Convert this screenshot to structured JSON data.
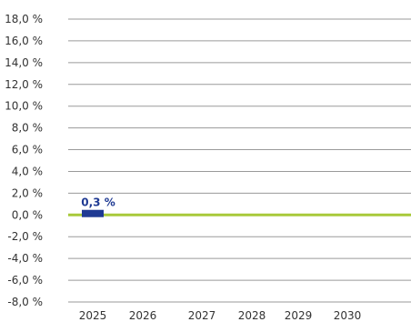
{
  "chart_data": {
    "type": "bar",
    "categories": [
      "2025",
      "2026",
      "2027",
      "2028",
      "2029",
      "2030"
    ],
    "series": [
      {
        "values": [
          0.3,
          null,
          null,
          null,
          null,
          null
        ]
      }
    ],
    "data_labels": [
      "0,3 %",
      "",
      "",
      "",
      "",
      ""
    ],
    "y_ticks": [
      18.0,
      16.0,
      14.0,
      12.0,
      10.0,
      8.0,
      6.0,
      4.0,
      2.0,
      0.0,
      -2.0,
      -4.0,
      -6.0,
      -8.0
    ],
    "y_tick_labels": [
      "18,0 %",
      "16,0 %",
      "14,0 %",
      "12,0 %",
      "10,0 %",
      "8,0 %",
      "6,0 %",
      "4,0 %",
      "2,0 %",
      "0,0 %",
      "-2,0 %",
      "-4,0 %",
      "-6,0 %",
      "-8,0 %"
    ],
    "ylim": [
      -8,
      18
    ],
    "grid": true,
    "title": "",
    "xlabel": "",
    "ylabel": "",
    "colors": {
      "bar": "#1f3a93",
      "label": "#1f3a93",
      "zero_line": "#a8c93a",
      "grid": "#9a9a9a"
    }
  }
}
